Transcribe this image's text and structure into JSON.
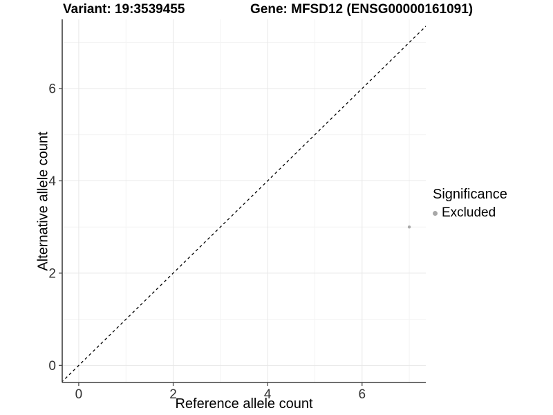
{
  "figure": {
    "background": "#ffffff"
  },
  "chart_data": {
    "type": "scatter",
    "titles": {
      "variant": "Variant: 19:3539455",
      "gene": "Gene: MFSD12 (ENSG00000161091)"
    },
    "xlabel": "Reference allele count",
    "ylabel": "Alternative allele count",
    "xlim": [
      -0.35,
      7.35
    ],
    "ylim": [
      -0.37,
      7.5
    ],
    "x_major_ticks": [
      0,
      2,
      4,
      6
    ],
    "y_major_ticks": [
      0,
      2,
      4,
      6
    ],
    "x_minor_gridlines": [
      1,
      3,
      5,
      7
    ],
    "y_minor_gridlines": [
      1,
      3,
      5,
      7
    ],
    "grid": "major+minor",
    "identity_line": {
      "equation": "y = x",
      "style": "dashed",
      "color": "#000000"
    },
    "legend": {
      "title": "Significance",
      "position": "right",
      "items": [
        {
          "label": "Excluded",
          "color": "#a8a8a8",
          "marker": "circle"
        }
      ]
    },
    "series": [
      {
        "name": "Excluded",
        "color": "#a8a8a8",
        "marker_radius": 2.2,
        "points": [
          {
            "x": 7,
            "y": 3
          }
        ]
      }
    ],
    "style": {
      "grid_major_color": "#e7e7e7",
      "grid_minor_color": "#f3f3f3",
      "axis_line_color": "#404040",
      "tick_label_color": "#333333"
    }
  }
}
